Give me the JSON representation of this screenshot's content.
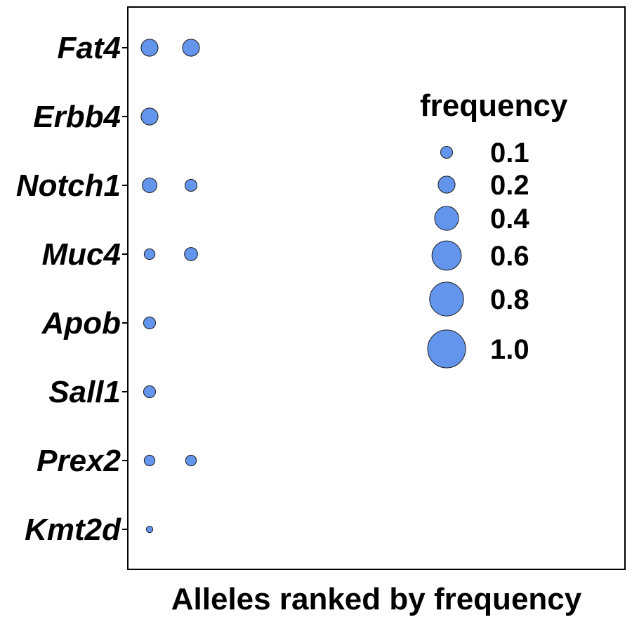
{
  "chart_data": {
    "type": "scatter",
    "title": "",
    "xlabel": "Alleles ranked by frequency",
    "ylabel": "",
    "grid": false,
    "legend_position": "right",
    "colors": {
      "point_fill": "#6495ED",
      "point_stroke": "#1a1a1a",
      "frame": "#000000"
    },
    "categories": [
      "Fat4",
      "Erbb4",
      "Notch1",
      "Muc4",
      "Apob",
      "Sall1",
      "Prex2",
      "Kmt2d"
    ],
    "points": [
      {
        "gene": "Fat4",
        "rank": 1,
        "frequency": 0.2
      },
      {
        "gene": "Fat4",
        "rank": 2,
        "frequency": 0.2
      },
      {
        "gene": "Erbb4",
        "rank": 1,
        "frequency": 0.2
      },
      {
        "gene": "Notch1",
        "rank": 1,
        "frequency": 0.15
      },
      {
        "gene": "Notch1",
        "rank": 2,
        "frequency": 0.1
      },
      {
        "gene": "Muc4",
        "rank": 1,
        "frequency": 0.08
      },
      {
        "gene": "Muc4",
        "rank": 2,
        "frequency": 0.12
      },
      {
        "gene": "Apob",
        "rank": 1,
        "frequency": 0.1
      },
      {
        "gene": "Sall1",
        "rank": 1,
        "frequency": 0.1
      },
      {
        "gene": "Prex2",
        "rank": 1,
        "frequency": 0.08
      },
      {
        "gene": "Prex2",
        "rank": 2,
        "frequency": 0.08
      },
      {
        "gene": "Kmt2d",
        "rank": 1,
        "frequency": 0.03
      }
    ],
    "size_legend": {
      "title": "frequency",
      "values": [
        0.1,
        0.2,
        0.4,
        0.6,
        0.8,
        1.0
      ],
      "labels": [
        "0.1",
        "0.2",
        "0.4",
        "0.6",
        "0.8",
        "1.0"
      ]
    }
  }
}
